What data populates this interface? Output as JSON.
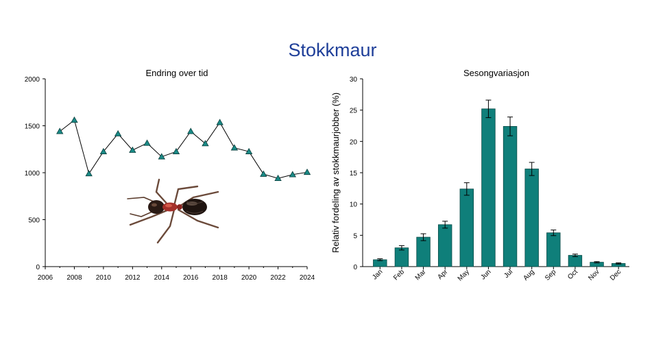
{
  "page": {
    "title": "Stokkmaur"
  },
  "chart_data": [
    {
      "type": "line",
      "title": "Endring over tid",
      "xlabel": "",
      "ylabel": "",
      "x": [
        2007,
        2008,
        2009,
        2010,
        2011,
        2012,
        2013,
        2014,
        2015,
        2016,
        2017,
        2018,
        2019,
        2020,
        2021,
        2022,
        2023,
        2024
      ],
      "values": [
        1440,
        1560,
        990,
        1225,
        1415,
        1240,
        1315,
        1170,
        1225,
        1440,
        1310,
        1535,
        1265,
        1225,
        985,
        940,
        980,
        1005
      ],
      "xlim": [
        2006,
        2024
      ],
      "ylim": [
        0,
        2000
      ],
      "xticks": [
        "2006",
        "2008",
        "2010",
        "2012",
        "2014",
        "2016",
        "2018",
        "2020",
        "2022",
        "2024"
      ],
      "yticks": [
        "0",
        "500",
        "1000",
        "1500",
        "2000"
      ],
      "marker": "triangle",
      "marker_color": "#1a8a86",
      "line_color": "#000000",
      "grid": false,
      "image": "ant-illustration"
    },
    {
      "type": "bar",
      "title": "Sesongvariasjon",
      "xlabel": "",
      "ylabel": "Relativ fordeling av stokkmaurjobber (%)",
      "categories": [
        "Jan",
        "Feb",
        "Mar",
        "Apr",
        "May",
        "Jun",
        "Jul",
        "Aug",
        "Sep",
        "Oct",
        "Nov",
        "Dec"
      ],
      "values": [
        1.1,
        3.0,
        4.7,
        6.7,
        12.4,
        25.2,
        22.4,
        15.6,
        5.4,
        1.8,
        0.7,
        0.5
      ],
      "errors": [
        0.15,
        0.35,
        0.55,
        0.55,
        1.0,
        1.4,
        1.5,
        1.05,
        0.45,
        0.2,
        0.1,
        0.1
      ],
      "ylim": [
        0,
        30
      ],
      "yticks": [
        "0",
        "5",
        "10",
        "15",
        "20",
        "25",
        "30"
      ],
      "bar_color": "#0f7f7a",
      "grid": false
    }
  ]
}
